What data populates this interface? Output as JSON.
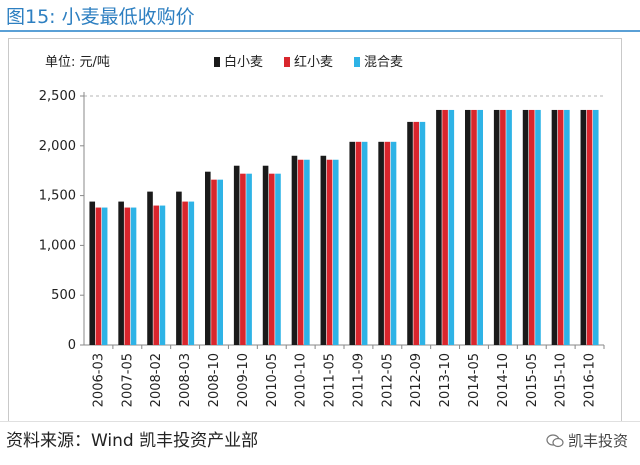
{
  "figure_title": "图15:  小麦最低收购价",
  "source_text": "资料来源：Wind  凯丰投资产业部",
  "watermark_text": "凯丰投资",
  "chart_data": {
    "type": "bar",
    "unit_label": "单位:  元/吨",
    "categories": [
      "2006-03",
      "2007-05",
      "2008-02",
      "2008-03",
      "2008-10",
      "2009-10",
      "2010-05",
      "2010-10",
      "2011-05",
      "2011-09",
      "2012-05",
      "2012-09",
      "2013-10",
      "2014-05",
      "2014-10",
      "2015-05",
      "2015-10",
      "2016-10"
    ],
    "series": [
      {
        "name": "白小麦",
        "color": "#1a1a1a",
        "values": [
          1440,
          1440,
          1540,
          1540,
          1740,
          1800,
          1800,
          1900,
          1900,
          2040,
          2040,
          2240,
          2360,
          2360,
          2360,
          2360,
          2360,
          2360
        ]
      },
      {
        "name": "红小麦",
        "color": "#d9262d",
        "values": [
          1380,
          1380,
          1400,
          1440,
          1660,
          1720,
          1720,
          1860,
          1860,
          2040,
          2040,
          2240,
          2360,
          2360,
          2360,
          2360,
          2360,
          2360
        ]
      },
      {
        "name": "混合麦",
        "color": "#2eb3e6",
        "values": [
          1380,
          1380,
          1400,
          1440,
          1660,
          1720,
          1720,
          1860,
          1860,
          2040,
          2040,
          2240,
          2360,
          2360,
          2360,
          2360,
          2360,
          2360
        ]
      }
    ],
    "ylim": [
      0,
      2500
    ],
    "yticks": [
      0,
      500,
      1000,
      1500,
      2000,
      2500
    ],
    "ytick_labels": [
      "0",
      "500",
      "1,000",
      "1,500",
      "2,000",
      "2,500"
    ],
    "grid": "horizontal dashed at top",
    "legend_position": "top-center"
  }
}
